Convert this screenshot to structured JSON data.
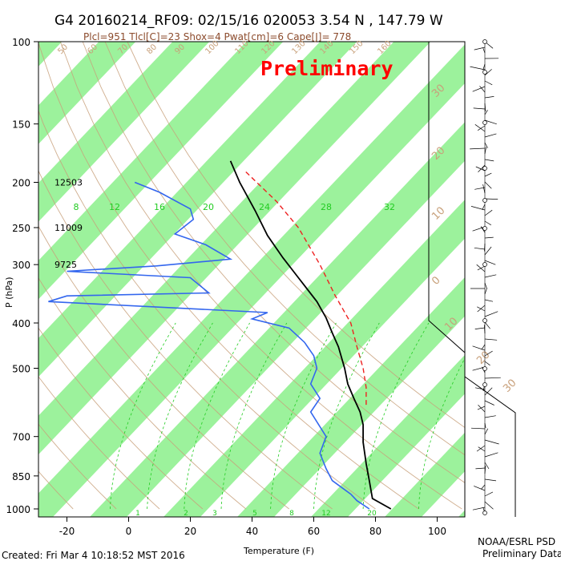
{
  "header": {
    "title": "G4 20160214_RF09: 02/15/16 020053   3.54 N , 147.79 W",
    "subtitle": "Plcl=951 Tlcl[C]=23 Shox=4 Pwat[cm]=6 Cape[J]= 778",
    "watermark": "Preliminary"
  },
  "footer": {
    "created": "Created: Fri Mar  4 10:18:52 MST 2016",
    "credit_line1": "NOAA/ESRL PSD",
    "credit_line2": "Preliminary Data"
  },
  "colors": {
    "title": "#000000",
    "subtitle": "#8b4a2b",
    "watermark": "#ff0000",
    "band": "#9cf29c",
    "isotherm_label": "#c8a07a",
    "mixing_ratio": "#22cc22",
    "dry_adiabat": "#c8a07a",
    "dewpoint": "#3366ee",
    "temperature": "#000000",
    "parcel": "#ee2222"
  },
  "chart_data": {
    "type": "line",
    "title": "G4 20160214_RF09: 02/15/16 020053   3.54 N , 147.79 W",
    "xlabel": "Temperature (F)",
    "ylabel": "P (hPa)",
    "y_scale": "log",
    "y_reversed": true,
    "xlim": [
      -30,
      120
    ],
    "ylim": [
      1050,
      100
    ],
    "x_ticks": [
      -20,
      0,
      20,
      40,
      60,
      80,
      100
    ],
    "y_ticks": [
      100,
      150,
      200,
      250,
      300,
      400,
      500,
      700,
      850,
      1000
    ],
    "height_labels": [
      {
        "p": 200,
        "text": "12503"
      },
      {
        "p": 250,
        "text": "11009"
      },
      {
        "p": 300,
        "text": "9725"
      }
    ],
    "mixing_ratio_labels_upper": [
      "8",
      "12",
      "16",
      "20",
      "24",
      "28",
      "32"
    ],
    "mixing_ratio_labels_lower": [
      "1",
      "2",
      "3",
      "5",
      "8",
      "12",
      "20"
    ],
    "skewed_isotherm_labels": [
      "50",
      "60",
      "70",
      "80",
      "90",
      "100",
      "110",
      "120",
      "130",
      "140",
      "150",
      "160",
      "30",
      "20",
      "10",
      "0",
      "10",
      "20",
      "30"
    ],
    "series": [
      {
        "name": "Temperature",
        "points": [
          [
            33,
            180
          ],
          [
            36,
            200
          ],
          [
            41,
            230
          ],
          [
            45,
            260
          ],
          [
            50,
            290
          ],
          [
            55,
            320
          ],
          [
            61,
            360
          ],
          [
            64,
            390
          ],
          [
            66,
            420
          ],
          [
            68,
            450
          ],
          [
            70,
            500
          ],
          [
            71,
            540
          ],
          [
            73,
            580
          ],
          [
            75,
            620
          ],
          [
            76,
            660
          ],
          [
            76,
            720
          ],
          [
            77,
            800
          ],
          [
            78,
            870
          ],
          [
            79,
            950
          ],
          [
            85,
            1000
          ]
        ]
      },
      {
        "name": "Dew point",
        "points": [
          [
            2,
            200
          ],
          [
            10,
            210
          ],
          [
            20,
            228
          ],
          [
            21,
            240
          ],
          [
            15,
            258
          ],
          [
            25,
            272
          ],
          [
            33,
            292
          ],
          [
            9,
            302
          ],
          [
            -20,
            310
          ],
          [
            20,
            320
          ],
          [
            26,
            345
          ],
          [
            -20,
            350
          ],
          [
            -26,
            360
          ],
          [
            45,
            380
          ],
          [
            40,
            392
          ],
          [
            52,
            410
          ],
          [
            57,
            440
          ],
          [
            60,
            470
          ],
          [
            61,
            500
          ],
          [
            59,
            540
          ],
          [
            62,
            580
          ],
          [
            59,
            620
          ],
          [
            64,
            700
          ],
          [
            62,
            760
          ],
          [
            64,
            820
          ],
          [
            66,
            870
          ],
          [
            72,
            930
          ],
          [
            74,
            960
          ],
          [
            78,
            1000
          ]
        ]
      },
      {
        "name": "Parcel",
        "points": [
          [
            38,
            190
          ],
          [
            48,
            220
          ],
          [
            55,
            250
          ],
          [
            62,
            300
          ],
          [
            67,
            350
          ],
          [
            72,
            400
          ],
          [
            74,
            450
          ],
          [
            76,
            500
          ],
          [
            77,
            550
          ],
          [
            77,
            600
          ]
        ]
      }
    ],
    "wind_profile_present": true,
    "grid": true
  }
}
